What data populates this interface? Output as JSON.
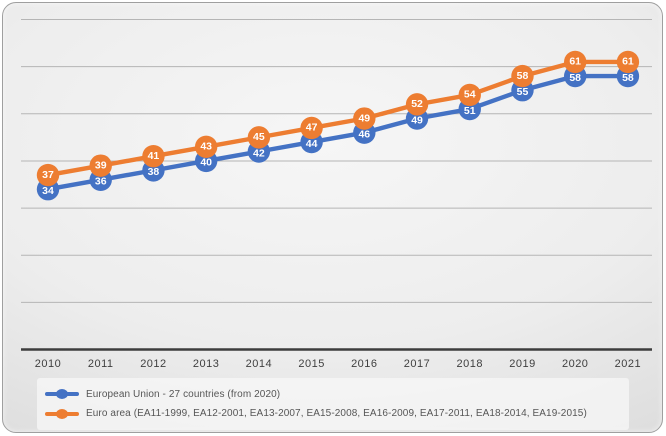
{
  "chart_data": {
    "type": "line",
    "title": "",
    "xlabel": "",
    "ylabel": "",
    "categories": [
      "2010",
      "2011",
      "2012",
      "2013",
      "2014",
      "2015",
      "2016",
      "2017",
      "2018",
      "2019",
      "2020",
      "2021"
    ],
    "series": [
      {
        "name": "European Union - 27 countries (from 2020)",
        "color": "#4472C4",
        "values": [
          34,
          36,
          38,
          40,
          42,
          44,
          46,
          49,
          51,
          55,
          58,
          58
        ]
      },
      {
        "name": "Euro area (EA11-1999, EA12-2001, EA13-2007, EA15-2008, EA16-2009, EA17-2011, EA18-2014, EA19-2015)",
        "color": "#ED7D31",
        "values": [
          37,
          39,
          41,
          43,
          45,
          47,
          49,
          52,
          54,
          58,
          61,
          61
        ]
      }
    ],
    "ylim": [
      0,
      70
    ],
    "grid_step": 10,
    "grid": "horizontal gridlines only, no y-axis tick labels",
    "legend_position": "bottom-left",
    "marker_style": "large filled circles with value labels inside",
    "label_text_color": "#ffffff",
    "gridline_color": "#b5b5b5",
    "axis_line_color": "#3d3d3d",
    "tick_label_color": "#3f3f3f"
  }
}
